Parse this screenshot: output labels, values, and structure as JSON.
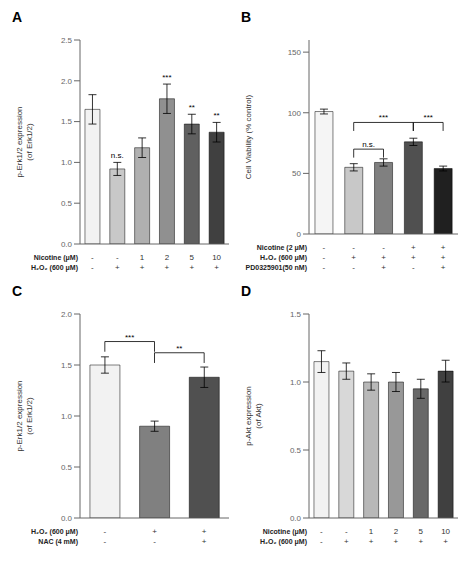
{
  "chart_data": [
    {
      "type": "bar",
      "title": "A",
      "ylabel": "p-Erk1/2 expression\n(of Erk1/2)",
      "xlabel": [
        "Nicotine (μM)",
        "H₂O₂ (600 μM)"
      ],
      "categories": [
        "-\n-",
        "-\n+",
        "1\n+",
        "2\n+",
        "5\n+",
        "10\n+"
      ],
      "values": [
        1.65,
        0.92,
        1.18,
        1.78,
        1.47,
        1.37
      ],
      "errors": [
        0.18,
        0.08,
        0.12,
        0.18,
        0.12,
        0.12
      ],
      "colors": [
        "#f2f2f2",
        "#c8c8c8",
        "#b0b0b0",
        "#909090",
        "#606060",
        "#404040"
      ],
      "sig": [
        null,
        "n.s.",
        null,
        "***",
        "**",
        "**"
      ],
      "ylim": [
        0,
        2.5
      ],
      "yticks": [
        {
          "value": 0,
          "label": "0.0"
        },
        {
          "value": 0.5,
          "label": "0.5"
        },
        {
          "value": 1.0,
          "label": "1.0"
        },
        {
          "value": 1.5,
          "label": "1.5"
        },
        {
          "value": 2.0,
          "label": "2.0"
        },
        {
          "value": 2.5,
          "label": "2.5"
        }
      ],
      "grid": false
    },
    {
      "type": "bar",
      "title": "B",
      "ylabel": "Cell Viability (% control)",
      "xlabel": [
        "Nicotine (2 μM)",
        "H₂O₂ (600 μM)",
        "PD0325901(50 nM)"
      ],
      "categories": [
        "-\n-\n-",
        "-\n+\n-",
        "-\n+\n+",
        "+\n+\n-",
        "+\n+\n+"
      ],
      "values": [
        101,
        55,
        59,
        76,
        54
      ],
      "errors": [
        2,
        3,
        3,
        3,
        2
      ],
      "colors": [
        "#f5f5f5",
        "#c8c8c8",
        "#808080",
        "#505050",
        "#202020"
      ],
      "brackets": [
        {
          "from": 1,
          "to": 2,
          "y": 63,
          "y_top": 70,
          "label": "n.s."
        },
        {
          "from": 1,
          "to": 3,
          "y": 85,
          "y_top": 92,
          "label": "***"
        },
        {
          "from": 3,
          "to": 4,
          "y": 85,
          "y_top": 92,
          "label": "***"
        }
      ],
      "ylim": [
        0,
        160
      ],
      "yticks": [
        0,
        50,
        100,
        150
      ],
      "grid": false
    },
    {
      "type": "bar",
      "title": "C",
      "ylabel": "p-Erk1/2 expression\n(of Erk1/2)",
      "xlabel": [
        "H₂O₂ (600 μM)",
        "NAC (4 mM)"
      ],
      "categories": [
        "-\n-",
        "+\n-",
        "+\n+"
      ],
      "values": [
        1.5,
        0.9,
        1.38
      ],
      "errors": [
        0.08,
        0.05,
        0.1
      ],
      "colors": [
        "#f2f2f2",
        "#808080",
        "#505050"
      ],
      "brackets": [
        {
          "from": 0,
          "to": 1,
          "y": 1.63,
          "y_top": 1.73,
          "label": "***"
        },
        {
          "from": 1,
          "to": 2,
          "y": 1.52,
          "y_top": 1.62,
          "label": "**"
        }
      ],
      "ylim": [
        0,
        2.0
      ],
      "yticks": [
        {
          "value": 0,
          "label": "0.0"
        },
        {
          "value": 0.5,
          "label": "0.5"
        },
        {
          "value": 1.0,
          "label": "1.0"
        },
        {
          "value": 1.5,
          "label": "1.5"
        },
        {
          "value": 2.0,
          "label": "2.0"
        }
      ],
      "grid": false
    },
    {
      "type": "bar",
      "title": "D",
      "ylabel": "p-Akt expression\n(of Akt)",
      "xlabel": [
        "Nicotine (μM)",
        "H₂O₂ (600 μM)"
      ],
      "categories": [
        "-\n-",
        "-\n+",
        "1\n+",
        "2\n+",
        "5\n+",
        "10\n+"
      ],
      "values": [
        1.15,
        1.08,
        1.0,
        1.0,
        0.95,
        1.08
      ],
      "errors": [
        0.08,
        0.06,
        0.06,
        0.07,
        0.07,
        0.08
      ],
      "colors": [
        "#f2f2f2",
        "#d8d8d8",
        "#b8b8b8",
        "#989898",
        "#686868",
        "#404040"
      ],
      "ylim": [
        0,
        1.5
      ],
      "yticks": [
        {
          "value": 0,
          "label": "0.0"
        },
        {
          "value": 0.5,
          "label": "0.5"
        },
        {
          "value": 1.0,
          "label": "1.0"
        },
        {
          "value": 1.5,
          "label": "1.5"
        }
      ],
      "grid": false
    }
  ]
}
